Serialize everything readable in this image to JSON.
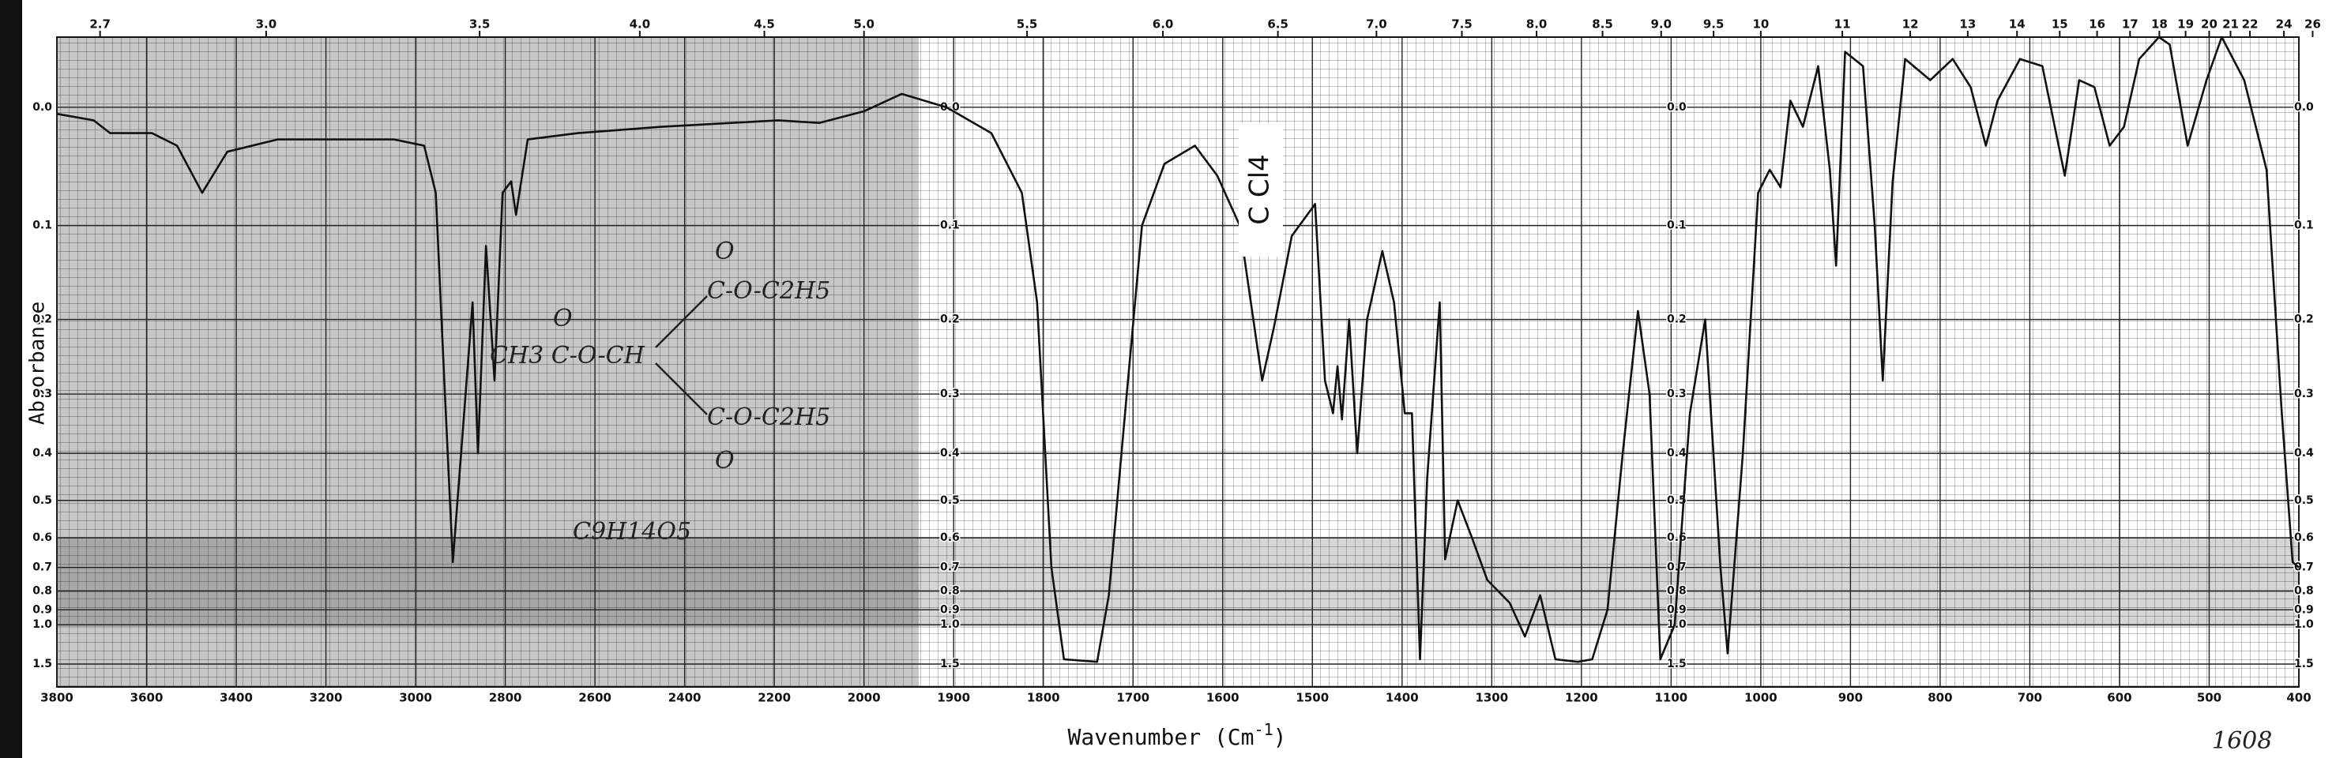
{
  "chart_data": {
    "type": "line",
    "ylabel": "Absorbance",
    "xlabel_parts": [
      "Wavenumber (Cm",
      "-1",
      ")"
    ],
    "yscale": "absorbance",
    "grid": true,
    "color": "#111111",
    "xlim": [
      3800,
      400
    ],
    "ylim": [
      1.5,
      -0.05
    ],
    "xticks": [
      3800,
      3600,
      3400,
      3200,
      3000,
      2800,
      2600,
      2400,
      2200,
      2000,
      1900,
      1800,
      1700,
      1600,
      1500,
      1400,
      1300,
      1200,
      1100,
      1000,
      900,
      800,
      700,
      600,
      500,
      400
    ],
    "yticks": [
      {
        "value": 0,
        "label": "0.0"
      },
      0.1,
      0.2,
      0.3,
      0.4,
      0.5,
      0.6,
      0.7,
      0.8,
      0.9,
      {
        "value": 1,
        "label": "1.0"
      },
      1.5
    ],
    "x2ticks": [
      2.7,
      {
        "value": 3,
        "label": "3.0"
      },
      3.5,
      {
        "value": 4,
        "label": "4.0"
      },
      4.5,
      {
        "value": 5,
        "label": "5.0"
      },
      5.5,
      {
        "value": 6,
        "label": "6.0"
      },
      6.5,
      {
        "value": 7,
        "label": "7.0"
      },
      7.5,
      {
        "value": 8,
        "label": "8.0"
      },
      8.5,
      {
        "value": 9,
        "label": "9.0"
      },
      9.5,
      10,
      11,
      12,
      13,
      14,
      15,
      16,
      17,
      18,
      19,
      20,
      21,
      22,
      24,
      26
    ],
    "x": [
      3800,
      3718,
      3681,
      3588,
      3532,
      3476,
      3420,
      3308,
      3197,
      3048,
      2981,
      2955,
      2936,
      2917,
      2873,
      2861,
      2843,
      2824,
      2806,
      2787,
      2776,
      2750,
      2638,
      2452,
      2191,
      2100,
      2000,
      1958,
      1908,
      1858,
      1824,
      1807,
      1791,
      1777,
      1740,
      1727,
      1707,
      1690,
      1665,
      1631,
      1606,
      1581,
      1556,
      1543,
      1523,
      1497,
      1486,
      1477,
      1472,
      1467,
      1459,
      1450,
      1439,
      1422,
      1409,
      1397,
      1389,
      1380,
      1372,
      1358,
      1352,
      1338,
      1322,
      1305,
      1280,
      1263,
      1246,
      1229,
      1204,
      1188,
      1171,
      1154,
      1137,
      1124,
      1112,
      1096,
      1079,
      1062,
      1045,
      1037,
      1020,
      1003,
      990,
      978,
      967,
      953,
      936,
      923,
      916,
      906,
      886,
      873,
      864,
      853,
      839,
      811,
      786,
      766,
      749,
      736,
      711,
      686,
      661,
      645,
      628,
      611,
      595,
      578,
      556,
      544,
      524,
      503,
      486,
      461,
      436,
      419,
      407,
      400
    ],
    "values": [
      0.005,
      0.01,
      0.02,
      0.02,
      0.03,
      0.07,
      0.035,
      0.025,
      0.025,
      0.025,
      0.03,
      0.07,
      0.28,
      0.68,
      0.18,
      0.4,
      0.12,
      0.28,
      0.07,
      0.06,
      0.09,
      0.025,
      0.02,
      0.015,
      0.01,
      0.012,
      0.003,
      -0.01,
      0,
      0.02,
      0.07,
      0.18,
      0.7,
      1.4,
      1.45,
      0.82,
      0.3,
      0.1,
      0.045,
      0.03,
      0.055,
      0.1,
      0.28,
      0.21,
      0.11,
      0.08,
      0.28,
      0.33,
      0.26,
      0.34,
      0.2,
      0.4,
      0.2,
      0.125,
      0.18,
      0.33,
      0.33,
      1.4,
      0.45,
      0.18,
      0.67,
      0.5,
      0.6,
      0.75,
      0.86,
      1.1,
      0.82,
      1.4,
      1.45,
      1.4,
      0.9,
      0.4,
      0.19,
      0.3,
      1.4,
      1.0,
      0.33,
      0.2,
      0.7,
      1.3,
      0.4,
      0.07,
      0.05,
      0.065,
      -0.005,
      0.015,
      -0.03,
      0.05,
      0.14,
      -0.04,
      -0.03,
      0.1,
      0.28,
      0.06,
      -0.035,
      -0.02,
      -0.035,
      -0.015,
      0.03,
      -0.005,
      -0.035,
      -0.03,
      0.055,
      -0.02,
      -0.015,
      0.03,
      0.015,
      -0.035,
      -0.05,
      -0.045,
      0.03,
      -0.02,
      -0.05,
      -0.02,
      0.05,
      0.33,
      0.68,
      0.7
    ],
    "annotations": [
      "C Cl4",
      "CH3 C-O-CH",
      "O",
      "C-O-C2H5",
      "O",
      "C-O-C2H5",
      "O",
      "C9H14O5",
      "1608"
    ]
  }
}
